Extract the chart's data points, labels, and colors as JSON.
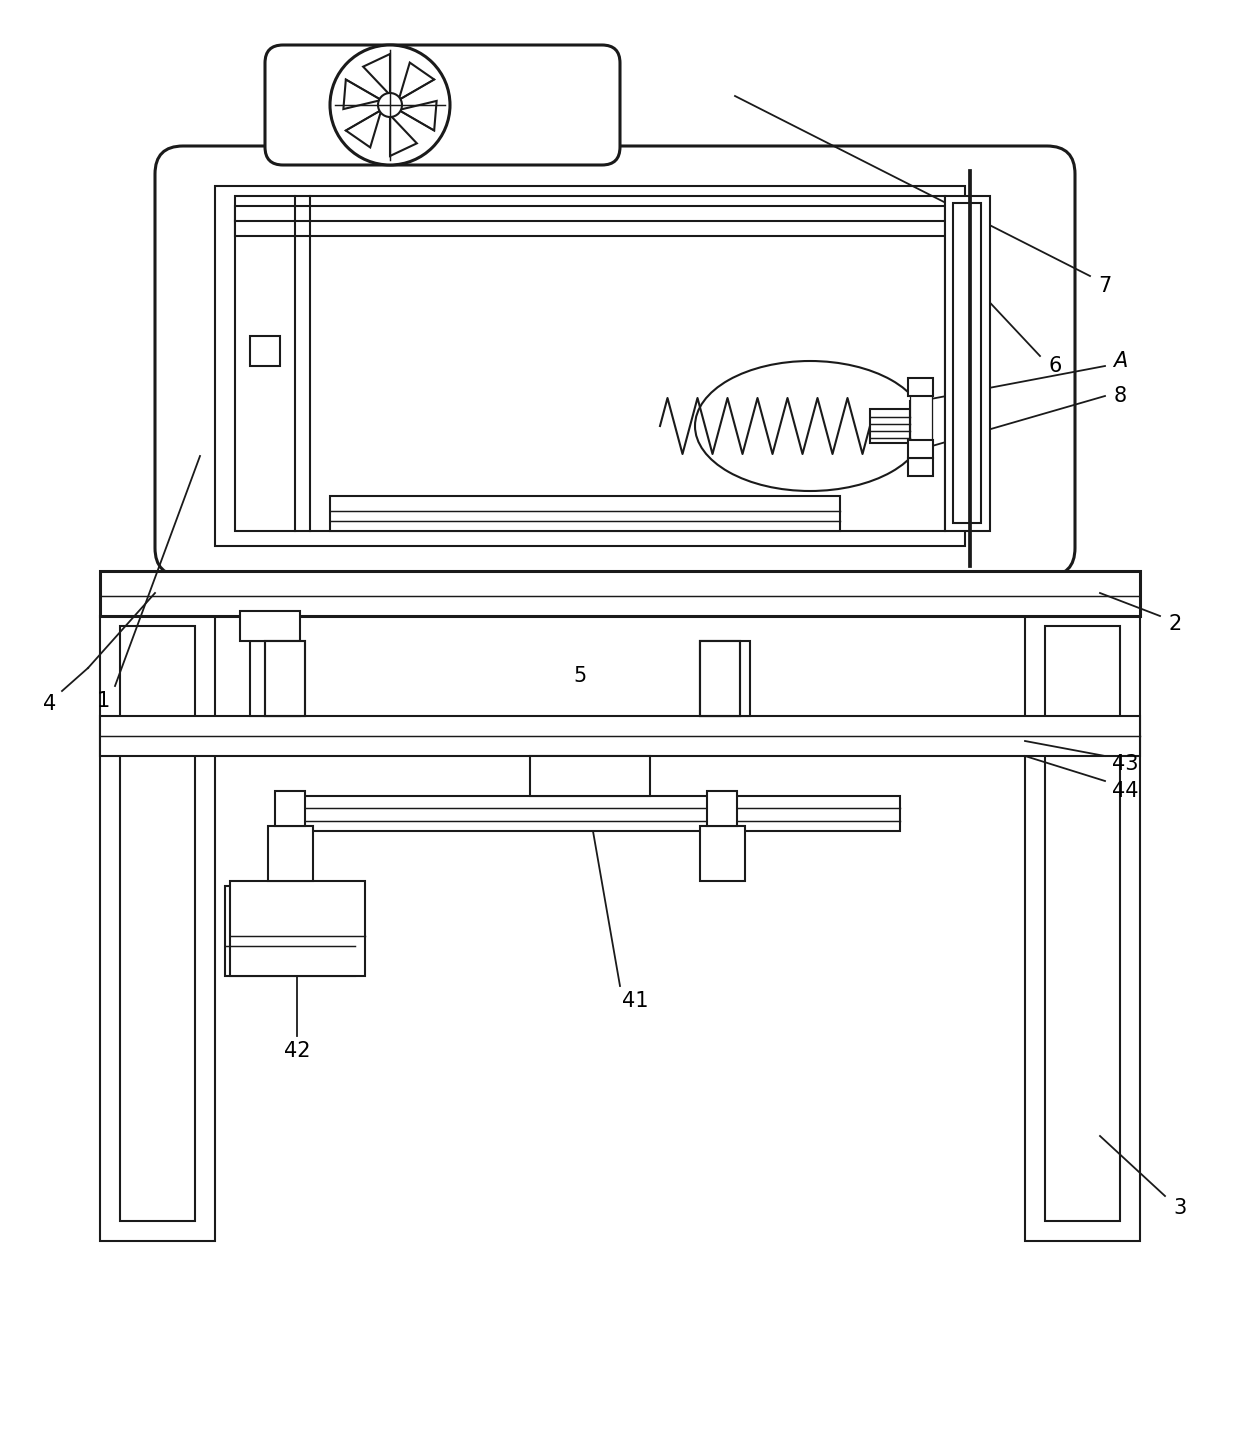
{
  "bg_color": "#ffffff",
  "lc": "#1a1a1a",
  "lw": 1.5,
  "lw2": 2.2,
  "fig_w": 12.4,
  "fig_h": 14.36
}
